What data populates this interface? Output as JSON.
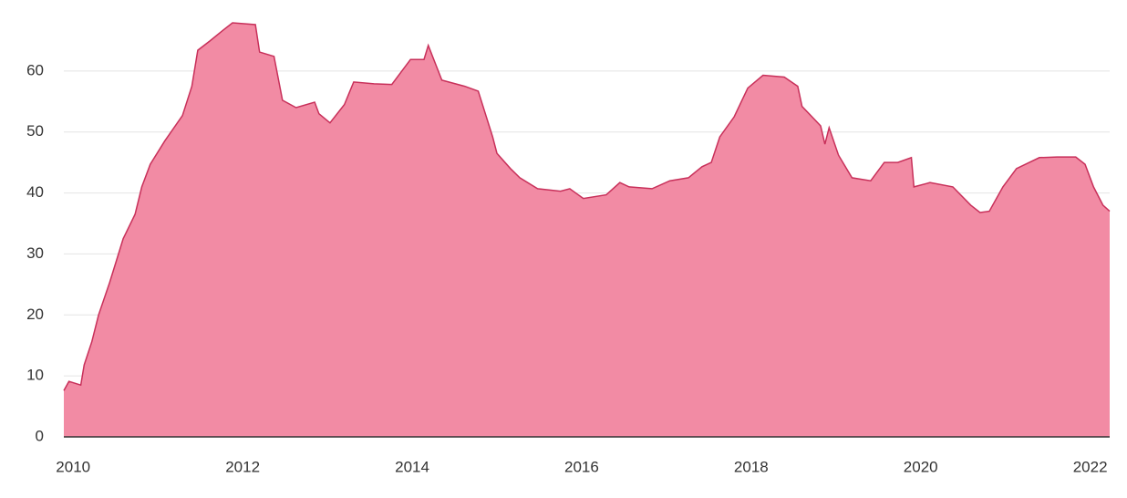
{
  "chart_data": {
    "type": "area",
    "color": "#f28ba4",
    "line_color": "#c8305a",
    "grid": true,
    "x": [
      2009.89,
      2009.95,
      2010.09,
      2010.13,
      2010.22,
      2010.3,
      2010.43,
      2010.59,
      2010.73,
      2010.81,
      2010.91,
      2011.08,
      2011.29,
      2011.4,
      2011.47,
      2011.61,
      2011.77,
      2011.88,
      2012.15,
      2012.2,
      2012.37,
      2012.47,
      2012.63,
      2012.85,
      2012.9,
      2013.03,
      2013.2,
      2013.31,
      2013.55,
      2013.76,
      2013.98,
      2014.14,
      2014.19,
      2014.35,
      2014.62,
      2014.78,
      2014.95,
      2015.0,
      2015.16,
      2015.27,
      2015.48,
      2015.75,
      2015.86,
      2016.02,
      2016.29,
      2016.45,
      2016.56,
      2016.83,
      2017.04,
      2017.26,
      2017.42,
      2017.53,
      2017.63,
      2017.8,
      2017.96,
      2018.14,
      2018.39,
      2018.55,
      2018.6,
      2018.82,
      2018.87,
      2018.92,
      2019.03,
      2019.19,
      2019.41,
      2019.57,
      2019.73,
      2019.89,
      2019.92,
      2020.11,
      2020.38,
      2020.59,
      2020.7,
      2020.81,
      2020.97,
      2021.13,
      2021.4,
      2021.61,
      2021.83,
      2021.94,
      2022.04,
      2022.15,
      2022.23
    ],
    "values": [
      7.6,
      9.1,
      8.5,
      11.8,
      15.6,
      20,
      25.3,
      32.5,
      36.5,
      41,
      44.7,
      48.5,
      52.7,
      57.5,
      63.4,
      64.9,
      66.7,
      67.9,
      67.6,
      63.1,
      62.4,
      55.2,
      54,
      54.9,
      53,
      51.5,
      54.5,
      58.2,
      57.9,
      57.8,
      61.9,
      61.9,
      64.2,
      58.5,
      57.5,
      56.7,
      49.2,
      46.5,
      44,
      42.5,
      40.7,
      40.3,
      40.7,
      39.1,
      39.7,
      41.7,
      41,
      40.7,
      42,
      42.5,
      44.3,
      45,
      49.2,
      52.5,
      57.2,
      59.3,
      59,
      57.5,
      54.2,
      51,
      48,
      50.7,
      46.2,
      42.5,
      42,
      45,
      45,
      45.8,
      41,
      41.7,
      41,
      38,
      36.8,
      37,
      41,
      44,
      45.8,
      45.9,
      45.9,
      44.7,
      41,
      38,
      37
    ],
    "xlim": [
      2009.89,
      2022.23
    ],
    "ylim": [
      0,
      70
    ],
    "xticks": [
      2010,
      2012,
      2014,
      2016,
      2018,
      2020,
      2022
    ],
    "yticks": [
      0,
      10,
      20,
      30,
      40,
      50,
      60
    ]
  }
}
